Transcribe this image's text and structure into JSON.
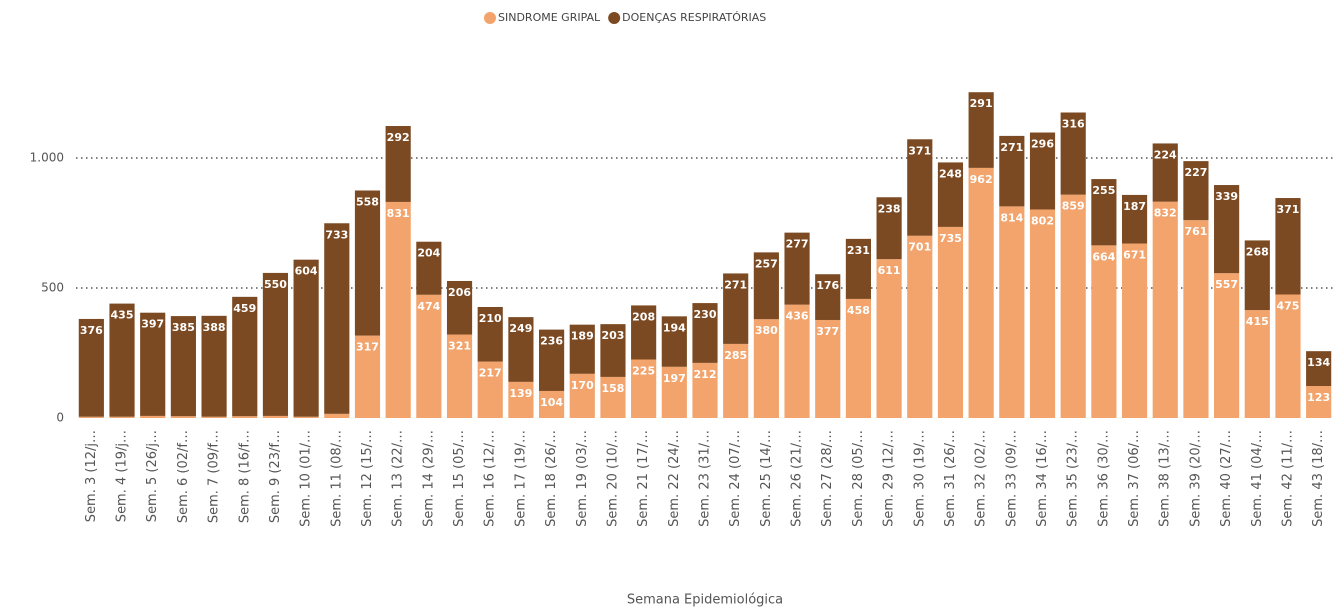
{
  "chart_data": {
    "type": "stacked-bar",
    "x_label": "Semana Epidemiológica",
    "categories": [
      "Sem. 3 (12/j…",
      "Sem. 4 (19/j…",
      "Sem. 5 (26/j…",
      "Sem. 6 (02/f…",
      "Sem. 7 (09/f…",
      "Sem. 8 (16/f…",
      "Sem. 9 (23/f…",
      "Sem. 10 (01/…",
      "Sem. 11 (08/…",
      "Sem. 12 (15/…",
      "Sem. 13 (22/…",
      "Sem. 14 (29/…",
      "Sem. 15 (05/…",
      "Sem. 16 (12/…",
      "Sem. 17 (19/…",
      "Sem. 18 (26/…",
      "Sem. 19 (03/…",
      "Sem. 20 (10/…",
      "Sem. 21 (17/…",
      "Sem. 22 (24/…",
      "Sem. 23 (31/…",
      "Sem. 24 (07/…",
      "Sem. 25 (14/…",
      "Sem. 26 (21/…",
      "Sem. 27 (28/…",
      "Sem. 28 (05/…",
      "Sem. 29 (12/…",
      "Sem. 30 (19/…",
      "Sem. 31 (26/…",
      "Sem. 32 (02/…",
      "Sem. 33 (09/…",
      "Sem. 34 (16/…",
      "Sem. 35 (23/…",
      "Sem. 36 (30/…",
      "Sem. 37 (06/…",
      "Sem. 38 (13/…",
      "Sem. 39 (20/…",
      "Sem. 40 (27/…",
      "Sem. 41 (04/…",
      "Sem. 42 (11/…",
      "Sem. 43 (18/…"
    ],
    "series": [
      {
        "name": "SINDROME GRIPAL",
        "color": "#f2a46c",
        "values": [
          5,
          5,
          8,
          7,
          5,
          7,
          8,
          5,
          16,
          317,
          831,
          474,
          321,
          217,
          139,
          104,
          170,
          158,
          225,
          197,
          212,
          285,
          380,
          436,
          377,
          458,
          611,
          701,
          735,
          962,
          814,
          802,
          859,
          664,
          671,
          832,
          761,
          557,
          415,
          475,
          123
        ],
        "value_labels": [
          null,
          null,
          null,
          null,
          null,
          null,
          null,
          null,
          null,
          "317",
          "831",
          "474",
          "321",
          "217",
          "139",
          "104",
          "170",
          "158",
          "225",
          "197",
          "212",
          "285",
          "380",
          "436",
          "377",
          "458",
          "611",
          "701",
          "735",
          "962",
          "814",
          "802",
          "859",
          "664",
          "671",
          "832",
          "761",
          "557",
          "415",
          "475",
          "123"
        ]
      },
      {
        "name": "DOENÇAS RESPIRATÓRIAS",
        "color": "#7c4a22",
        "values": [
          376,
          435,
          397,
          385,
          388,
          459,
          550,
          604,
          733,
          558,
          292,
          204,
          206,
          210,
          249,
          236,
          189,
          203,
          208,
          194,
          230,
          271,
          257,
          277,
          176,
          231,
          238,
          371,
          248,
          291,
          271,
          296,
          316,
          255,
          187,
          224,
          227,
          339,
          268,
          371,
          134
        ],
        "value_labels": [
          "376",
          "435",
          "397",
          "385",
          "388",
          "459",
          "550",
          "604",
          "733",
          "558",
          "292",
          "204",
          "206",
          "210",
          "249",
          "236",
          "189",
          "203",
          "208",
          "194",
          "230",
          "271",
          "257",
          "277",
          "176",
          "231",
          "238",
          "371",
          "248",
          "291",
          "271",
          "296",
          "316",
          "255",
          "187",
          "224",
          "227",
          "339",
          "268",
          "371",
          "134"
        ]
      }
    ],
    "ylim": [
      0,
      1300
    ],
    "yticks": [
      0,
      500,
      {
        "value": 1000,
        "label": "1.000"
      }
    ],
    "grid": true,
    "legend": "top"
  }
}
